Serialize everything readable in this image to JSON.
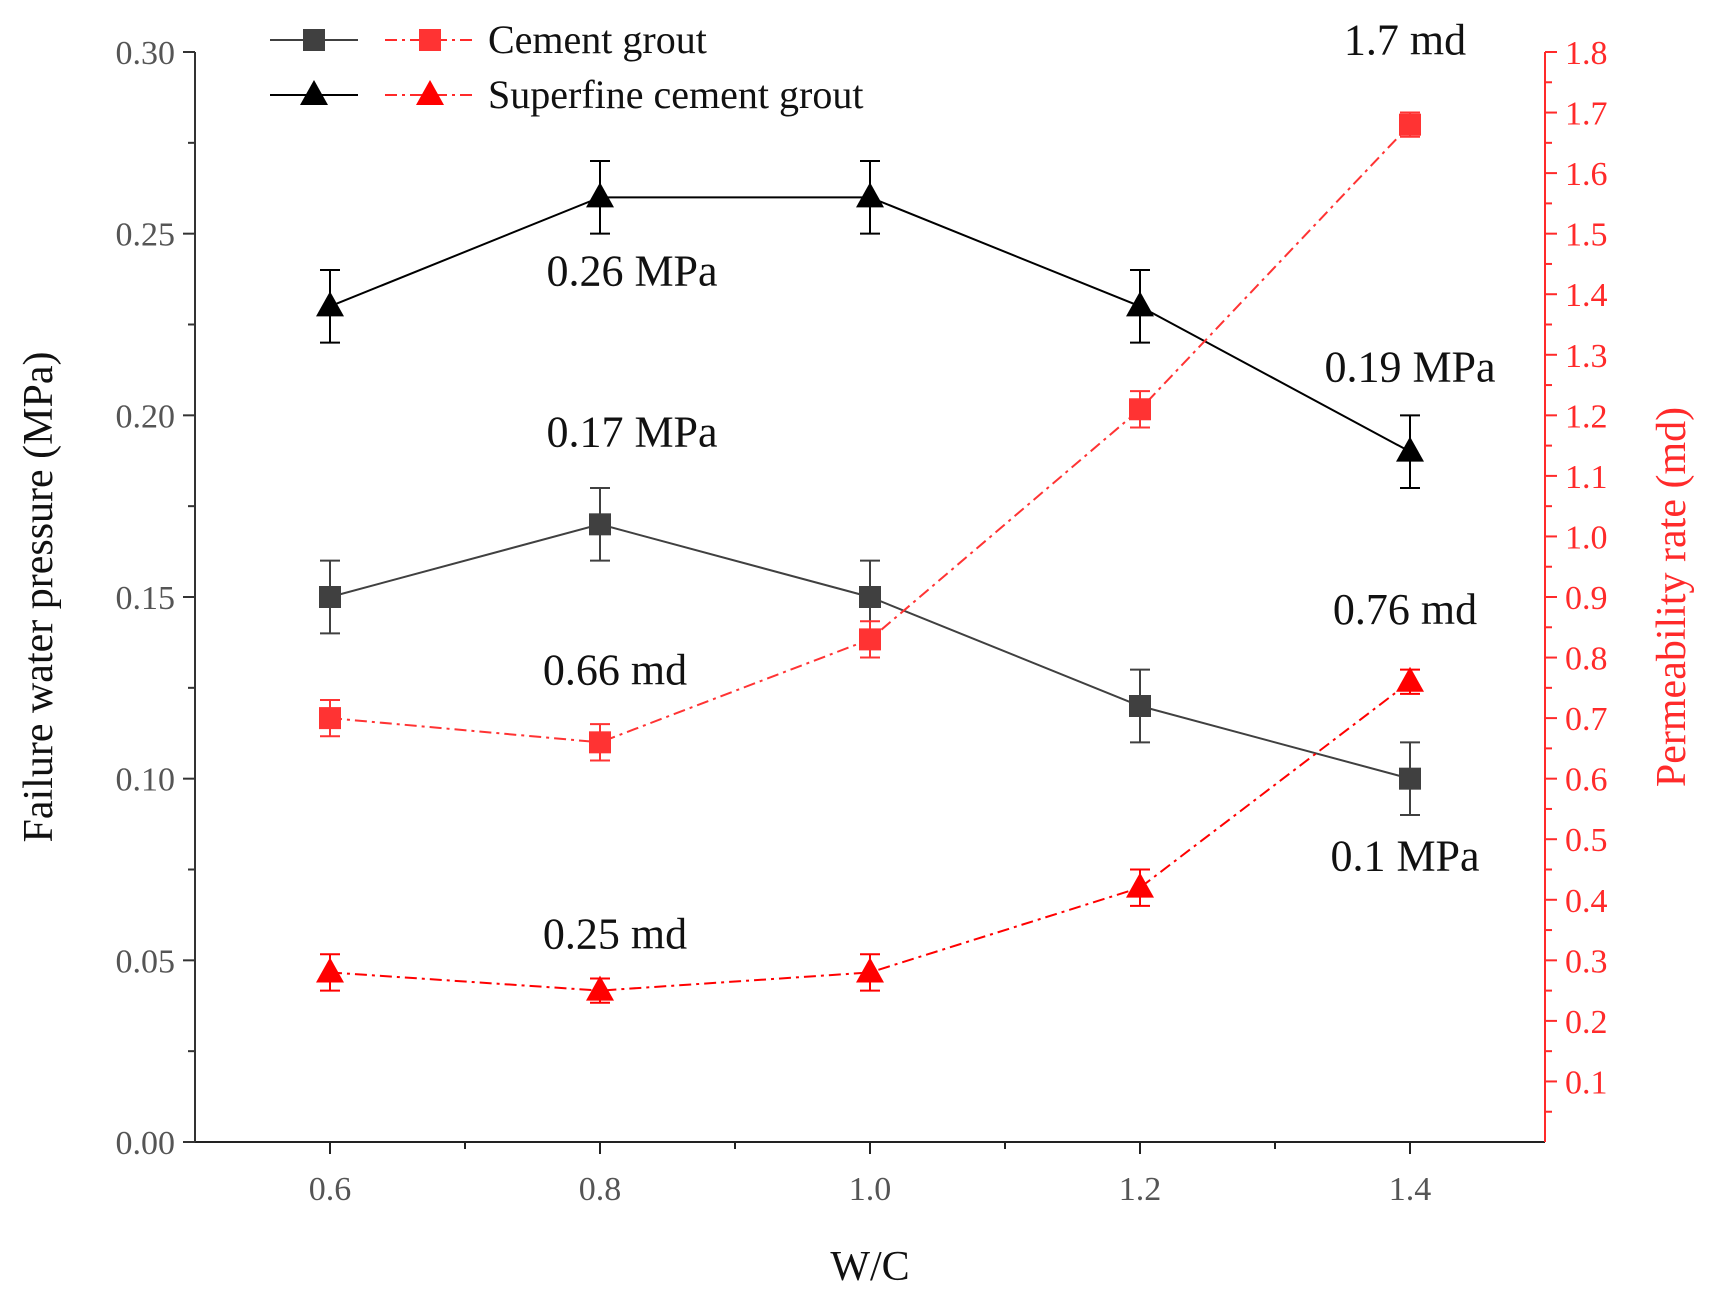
{
  "chart_data": {
    "type": "line",
    "xlabel": "W/C",
    "ylabel_left": "Failure water pressure (MPa)",
    "ylabel_right": "Permeability rate (md)",
    "x": [
      0.6,
      0.8,
      1.0,
      1.2,
      1.4
    ],
    "x_tick_labels": [
      "0.6",
      "0.8",
      "1.0",
      "1.2",
      "1.4"
    ],
    "xlim": [
      0.5,
      1.5
    ],
    "ylim_left": [
      0.0,
      0.3
    ],
    "ylim_right": [
      0.0,
      1.8
    ],
    "y_left_tick_labels": [
      "0.00",
      "0.05",
      "0.10",
      "0.15",
      "0.20",
      "0.25",
      "0.30"
    ],
    "y_right_tick_labels": [
      "0.1",
      "0.2",
      "0.3",
      "0.4",
      "0.5",
      "0.6",
      "0.7",
      "0.8",
      "0.9",
      "1.0",
      "1.1",
      "1.2",
      "1.3",
      "1.4",
      "1.5",
      "1.6",
      "1.7",
      "1.8"
    ],
    "series": [
      {
        "name": "Cement grout (failure water pressure)",
        "axis": "left",
        "marker": "square",
        "color": "#404040",
        "dash": "solid",
        "values": [
          0.15,
          0.17,
          0.15,
          0.12,
          0.1
        ],
        "errors": [
          0.01,
          0.01,
          0.01,
          0.01,
          0.01
        ]
      },
      {
        "name": "Superfine cement grout (failure water pressure)",
        "axis": "left",
        "marker": "triangle",
        "color": "#000000",
        "dash": "solid",
        "values": [
          0.23,
          0.26,
          0.26,
          0.23,
          0.19
        ],
        "errors": [
          0.01,
          0.01,
          0.01,
          0.01,
          0.01
        ]
      },
      {
        "name": "Cement grout (permeability rate)",
        "axis": "right",
        "marker": "square",
        "color": "#ff3333",
        "dash": "dashdot",
        "values": [
          0.7,
          0.66,
          0.83,
          1.21,
          1.68
        ],
        "errors": [
          0.03,
          0.03,
          0.03,
          0.03,
          0.02
        ]
      },
      {
        "name": "Superfine cement grout (permeability rate)",
        "axis": "right",
        "marker": "triangle",
        "color": "#ff0000",
        "dash": "dashdot",
        "values": [
          0.28,
          0.25,
          0.28,
          0.42,
          0.76
        ],
        "errors": [
          0.03,
          0.02,
          0.03,
          0.03,
          0.02
        ]
      }
    ],
    "legend": {
      "position": "top-left",
      "entries": [
        "Cement grout",
        "Superfine cement grout"
      ]
    },
    "annotations": [
      "0.26 MPa",
      "0.17 MPa",
      "0.19 MPa",
      "0.1 MPa",
      "1.7 md",
      "0.76 md",
      "0.66 md",
      "0.25 md"
    ]
  }
}
